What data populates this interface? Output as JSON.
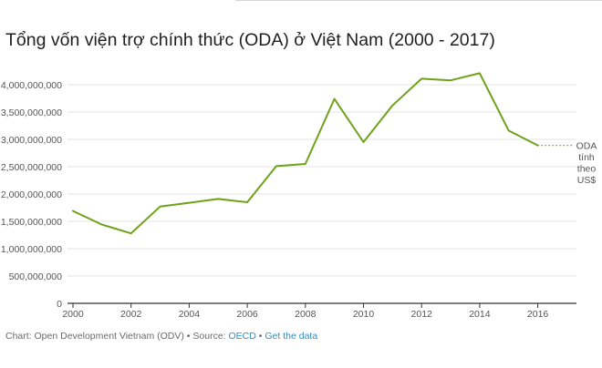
{
  "title": "Tổng vốn viện trợ chính thức (ODA) ở Việt Nam (2000 - 2017)",
  "chart_data": {
    "type": "line",
    "title": "Tổng vốn viện trợ chính thức (ODA) ở Việt Nam (2000 - 2017)",
    "x": [
      2000,
      2001,
      2002,
      2003,
      2004,
      2005,
      2006,
      2007,
      2008,
      2009,
      2010,
      2011,
      2012,
      2013,
      2014,
      2015,
      2016
    ],
    "series": [
      {
        "name": "ODA tính theo US$",
        "values": [
          1690000000,
          1440000000,
          1280000000,
          1770000000,
          1840000000,
          1910000000,
          1850000000,
          2510000000,
          2550000000,
          3740000000,
          2950000000,
          3620000000,
          4110000000,
          4080000000,
          4210000000,
          3160000000,
          2890000000
        ],
        "color": "#6ea21a"
      }
    ],
    "projection_end_x": 2017.2,
    "xlim": [
      2000,
      2017.3
    ],
    "ylim": [
      0,
      4000000000
    ],
    "x_ticks": [
      2000,
      2002,
      2004,
      2006,
      2008,
      2010,
      2012,
      2014,
      2016
    ],
    "y_ticks": [
      0,
      500000000,
      1000000000,
      1500000000,
      2000000000,
      2500000000,
      3000000000,
      3500000000,
      4000000000
    ],
    "y_tick_labels": [
      "0",
      "500,000,000",
      "1,000,000,000",
      "1,500,000,000",
      "2,000,000,000",
      "2,500,000,000",
      "3,000,000,000",
      "3,500,000,000",
      "4,000,000,000"
    ],
    "series_label_lines": [
      "ODA",
      "tính",
      "theo",
      "US$"
    ],
    "grid": true,
    "gridline_color": "#e3e3e3"
  },
  "footer": {
    "prefix": "Chart: Open Development Vietnam (ODV) • Source: ",
    "source_link": "OECD",
    "separator": " • ",
    "data_link": "Get the data"
  }
}
